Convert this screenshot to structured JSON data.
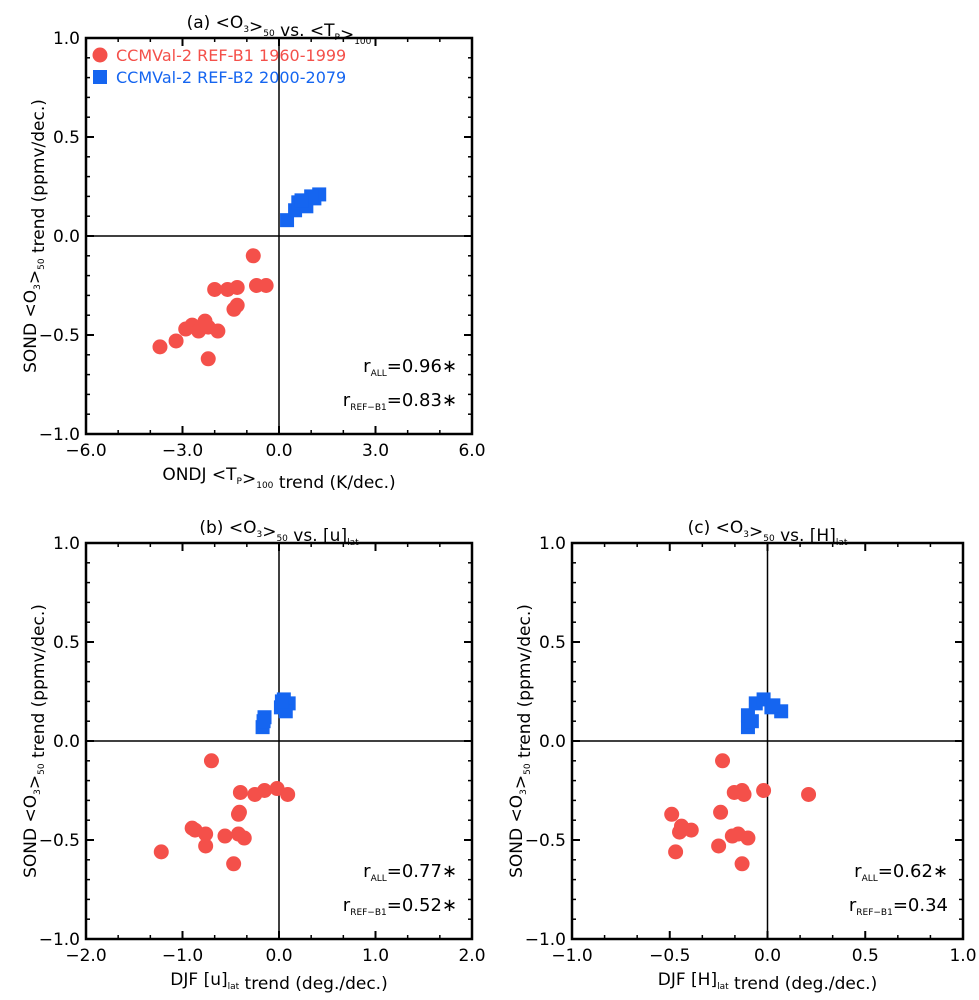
{
  "chart_data": [
    {
      "id": "a",
      "type": "scatter",
      "title": "(a) <O₃>₅₀ vs. <Tₚ>₁₀₀",
      "title_parts": {
        "prefix": "(a) <O",
        "sub1": "3",
        "mid": ">",
        "sub2": "50",
        "vs": " vs. <T",
        "sub3": "P",
        "mid2": ">",
        "sub4": "100",
        "suffix": ""
      },
      "xlabel_parts": {
        "prefix": "ONDJ <T",
        "sub1": "P",
        "mid": ">",
        "sub2": "100",
        "suffix": " trend (K/dec.)"
      },
      "ylabel_parts": {
        "prefix": "SOND <O",
        "sub1": "3",
        "mid": ">",
        "sub2": "50",
        "suffix": " trend (ppmv/dec.)"
      },
      "xlim": [
        -6.0,
        6.0
      ],
      "ylim": [
        -1.0,
        1.0
      ],
      "xticks": [
        "−6.0",
        "−3.0",
        "0.0",
        "3.0",
        "6.0"
      ],
      "xtick_values": [
        -6,
        -3,
        0,
        3,
        6
      ],
      "yticks": [
        "−1.0",
        "−0.5",
        "0.0",
        "0.5",
        "1.0"
      ],
      "ytick_values": [
        -1,
        -0.5,
        0,
        0.5,
        1
      ],
      "legend": [
        {
          "name": "CCMVal-2 REF-B1 1960-1999",
          "color": "#f4504a",
          "marker": "circle"
        },
        {
          "name": "CCMVal-2 REF-B2 2000-2079",
          "color": "#1565f0",
          "marker": "square"
        }
      ],
      "series": [
        {
          "name": "CCMVal-2 REF-B1 1960-1999",
          "color": "#f4504a",
          "marker": "circle",
          "x": [
            -3.7,
            -3.2,
            -2.9,
            -2.7,
            -2.5,
            -2.3,
            -2.2,
            -2.2,
            -1.9,
            -2.0,
            -1.6,
            -1.3,
            -1.4,
            -1.3,
            -0.7,
            -0.4,
            -0.8
          ],
          "y": [
            -0.56,
            -0.53,
            -0.47,
            -0.45,
            -0.48,
            -0.43,
            -0.46,
            -0.62,
            -0.48,
            -0.27,
            -0.27,
            -0.26,
            -0.37,
            -0.35,
            -0.25,
            -0.25,
            -0.1
          ]
        },
        {
          "name": "CCMVal-2 REF-B2 2000-2079",
          "color": "#1565f0",
          "marker": "square",
          "x": [
            0.25,
            0.5,
            0.6,
            0.85,
            1.1,
            1.25,
            1.0,
            0.7
          ],
          "y": [
            0.08,
            0.13,
            0.17,
            0.15,
            0.19,
            0.21,
            0.2,
            0.18
          ]
        }
      ],
      "stats": [
        {
          "label": "r",
          "sub": "ALL",
          "value": "=0.96∗"
        },
        {
          "label": "r",
          "sub": "REF−B1",
          "value": "=0.83∗"
        }
      ]
    },
    {
      "id": "b",
      "type": "scatter",
      "title_parts": {
        "prefix": "(b) <O",
        "sub1": "3",
        "mid": ">",
        "sub2": "50",
        "vs": " vs. [u]",
        "sub3": "lat",
        "mid2": "",
        "sub4": "",
        "suffix": ""
      },
      "xlabel_parts": {
        "prefix": "DJF [u]",
        "sub1": "lat",
        "mid": "",
        "sub2": "",
        "suffix": " trend (deg./dec.)"
      },
      "ylabel_parts": {
        "prefix": "SOND <O",
        "sub1": "3",
        "mid": ">",
        "sub2": "50",
        "suffix": " trend (ppmv/dec.)"
      },
      "xlim": [
        -2.0,
        2.0
      ],
      "ylim": [
        -1.0,
        1.0
      ],
      "xticks": [
        "−2.0",
        "−1.0",
        "0.0",
        "1.0",
        "2.0"
      ],
      "xtick_values": [
        -2,
        -1,
        0,
        1,
        2
      ],
      "yticks": [
        "−1.0",
        "−0.5",
        "0.0",
        "0.5",
        "1.0"
      ],
      "ytick_values": [
        -1,
        -0.5,
        0,
        0.5,
        1
      ],
      "series": [
        {
          "name": "CCMVal-2 REF-B1 1960-1999",
          "color": "#f4504a",
          "marker": "circle",
          "x": [
            -1.22,
            -0.9,
            -0.87,
            -0.76,
            -0.76,
            -0.7,
            -0.56,
            -0.47,
            -0.42,
            -0.42,
            -0.41,
            -0.36,
            -0.25,
            -0.15,
            -0.02,
            0.09,
            -0.4
          ],
          "y": [
            -0.56,
            -0.44,
            -0.45,
            -0.47,
            -0.53,
            -0.1,
            -0.48,
            -0.62,
            -0.47,
            -0.37,
            -0.36,
            -0.49,
            -0.27,
            -0.25,
            -0.24,
            -0.27,
            -0.26
          ]
        },
        {
          "name": "CCMVal-2 REF-B2 2000-2079",
          "color": "#1565f0",
          "marker": "square",
          "x": [
            -0.17,
            -0.15,
            0.02,
            0.05,
            0.1,
            0.07,
            0.03,
            -0.16
          ],
          "y": [
            0.07,
            0.12,
            0.17,
            0.21,
            0.19,
            0.15,
            0.2,
            0.1
          ]
        }
      ],
      "stats": [
        {
          "label": "r",
          "sub": "ALL",
          "value": "=0.77∗"
        },
        {
          "label": "r",
          "sub": "REF−B1",
          "value": "=0.52∗"
        }
      ]
    },
    {
      "id": "c",
      "type": "scatter",
      "title_parts": {
        "prefix": "(c) <O",
        "sub1": "3",
        "mid": ">",
        "sub2": "50",
        "vs": " vs. [H]",
        "sub3": "lat",
        "mid2": "",
        "sub4": "",
        "suffix": ""
      },
      "xlabel_parts": {
        "prefix": "DJF [H]",
        "sub1": "lat",
        "mid": "",
        "sub2": "",
        "suffix": " trend (deg./dec.)"
      },
      "ylabel_parts": {
        "prefix": "SOND <O",
        "sub1": "3",
        "mid": ">",
        "sub2": "50",
        "suffix": " trend (ppmv/dec.)"
      },
      "xlim": [
        -1.0,
        1.0
      ],
      "ylim": [
        -1.0,
        1.0
      ],
      "xticks": [
        "−1.0",
        "−0.5",
        "0.0",
        "0.5",
        "1.0"
      ],
      "xtick_values": [
        -1,
        -0.5,
        0,
        0.5,
        1
      ],
      "yticks": [
        "−1.0",
        "−0.5",
        "0.0",
        "0.5",
        "1.0"
      ],
      "ytick_values": [
        -1,
        -0.5,
        0,
        0.5,
        1
      ],
      "series": [
        {
          "name": "CCMVal-2 REF-B1 1960-1999",
          "color": "#f4504a",
          "marker": "circle",
          "x": [
            -0.47,
            -0.44,
            -0.45,
            -0.49,
            -0.39,
            -0.25,
            -0.24,
            -0.18,
            -0.15,
            -0.17,
            -0.13,
            -0.1,
            -0.13,
            -0.12,
            -0.02,
            0.21,
            -0.23
          ],
          "y": [
            -0.56,
            -0.43,
            -0.46,
            -0.37,
            -0.45,
            -0.53,
            -0.36,
            -0.48,
            -0.47,
            -0.26,
            -0.25,
            -0.49,
            -0.62,
            -0.27,
            -0.25,
            -0.27,
            -0.1
          ]
        },
        {
          "name": "CCMVal-2 REF-B2 2000-2079",
          "color": "#1565f0",
          "marker": "square",
          "x": [
            -0.1,
            -0.1,
            -0.06,
            -0.02,
            0.02,
            0.07,
            0.03,
            -0.08
          ],
          "y": [
            0.07,
            0.13,
            0.19,
            0.21,
            0.17,
            0.15,
            0.18,
            0.1
          ]
        }
      ],
      "stats": [
        {
          "label": "r",
          "sub": "ALL",
          "value": "=0.62∗"
        },
        {
          "label": "r",
          "sub": "REF−B1",
          "value": "=0.34"
        }
      ]
    }
  ]
}
